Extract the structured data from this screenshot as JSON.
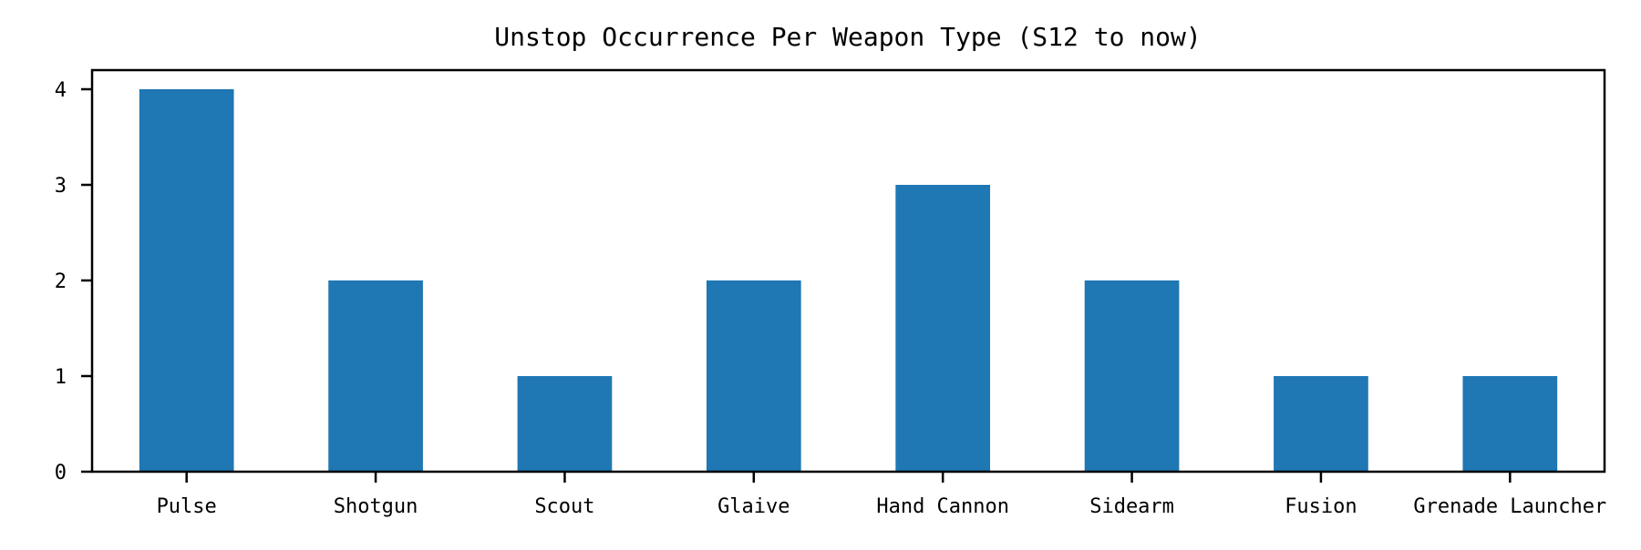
{
  "chart_data": {
    "type": "bar",
    "title": "Unstop Occurrence Per Weapon Type (S12 to now)",
    "xlabel": "",
    "ylabel": "",
    "categories": [
      "Pulse",
      "Shotgun",
      "Scout",
      "Glaive",
      "Hand Cannon",
      "Sidearm",
      "Fusion",
      "Grenade Launcher"
    ],
    "values": [
      4,
      2,
      1,
      2,
      3,
      2,
      1,
      1
    ],
    "ylim": [
      0,
      4.2
    ],
    "yticks": [
      0,
      1,
      2,
      3,
      4
    ],
    "grid": false,
    "legend": "none",
    "colors": {
      "bar": "#1f77b4",
      "axis": "#000000",
      "background": "#ffffff"
    }
  }
}
